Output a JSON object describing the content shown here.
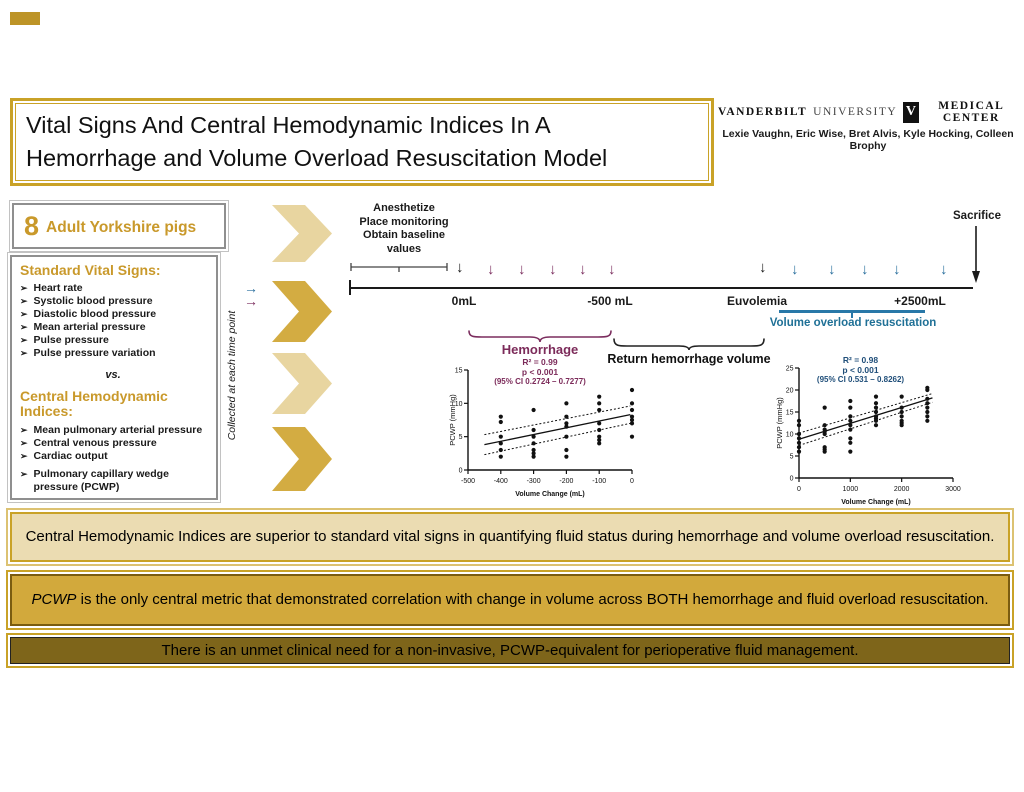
{
  "header": {
    "title_line1": "Vital Signs And Central Hemodynamic Indices In A",
    "title_line2": "Hemorrhage and Volume Overload Resuscitation Model",
    "org_part1": "VANDERBILT",
    "org_part2": "UNIVERSITY",
    "org_part3": "MEDICAL CENTER",
    "shield_letter": "V",
    "authors": "Lexie Vaughn, Eric Wise, Bret Alvis, Kyle Hocking, Colleen Brophy"
  },
  "left_panel": {
    "subjects_count": "8",
    "subjects_label": "Adult Yorkshire pigs",
    "vital_signs": {
      "heading": "Standard Vital Signs:",
      "items": [
        "Heart rate",
        "Systolic blood pressure",
        "Diastolic blood pressure",
        "Mean arterial pressure",
        "Pulse pressure",
        "Pulse pressure variation"
      ]
    },
    "versus": "vs.",
    "central_indices": {
      "heading": "Central Hemodynamic Indices:",
      "items": [
        "Mean pulmonary arterial pressure",
        "Central venous pressure",
        "Cardiac output",
        "Pulmonary capillary wedge pressure (PCWP)"
      ]
    },
    "collected_label": "Collected at each time point"
  },
  "timeline": {
    "baseline_lines": [
      "Anesthetize",
      "Place monitoring",
      "Obtain baseline",
      "values"
    ],
    "labels": {
      "start": "0mL",
      "hemorrhage_end": "-500 mL",
      "euvolemia": "Euvolemia",
      "overload_end": "+2500mL",
      "sacrifice": "Sacrifice"
    },
    "hemorrhage_label": "Hemorrhage",
    "return_label": "Return hemorrhage volume",
    "overload_label": "Volume overload resuscitation"
  },
  "chart_data": [
    {
      "type": "scatter",
      "title": "Hemorrhage",
      "stats": {
        "r2": "R² = 0.99",
        "p": "p < 0.001",
        "ci": "(95% CI 0.2724 – 0.7277)"
      },
      "xlabel": "Volume Change (mL)",
      "ylabel": "PCWP (mmHg)",
      "xlim": [
        -500,
        0
      ],
      "ylim": [
        0,
        15
      ],
      "xticks": [
        -500,
        -400,
        -300,
        -200,
        -100,
        0
      ],
      "yticks": [
        0,
        5,
        10,
        15
      ],
      "grid": false,
      "point_color": "#111111",
      "groups": [
        {
          "x": -400,
          "y": [
            2,
            3,
            4,
            5,
            7.2,
            8
          ]
        },
        {
          "x": -300,
          "y": [
            2,
            2.5,
            3,
            4,
            5,
            6,
            9
          ]
        },
        {
          "x": -200,
          "y": [
            2,
            3,
            5,
            6.5,
            7,
            8,
            10
          ]
        },
        {
          "x": -100,
          "y": [
            4,
            4.5,
            5,
            6,
            7,
            9,
            10,
            11
          ]
        },
        {
          "x": 0,
          "y": [
            5,
            7,
            7.5,
            8,
            9,
            10,
            12
          ]
        }
      ],
      "fit_line": {
        "x": [
          -450,
          -5
        ],
        "y": [
          3.8,
          8.3
        ]
      },
      "ci_upper": {
        "x": [
          -450,
          -5
        ],
        "y": [
          5.3,
          9.6
        ]
      },
      "ci_lower": {
        "x": [
          -450,
          -5
        ],
        "y": [
          2.3,
          7.0
        ]
      }
    },
    {
      "type": "scatter",
      "title": "Volume overload resuscitation",
      "stats": {
        "r2": "R² = 0.98",
        "p": "p < 0.001",
        "ci": "(95% CI 0.531 – 0.8262)"
      },
      "xlabel": "Volume Change (mL)",
      "ylabel": "PCWP (mmHg)",
      "xlim": [
        0,
        3000
      ],
      "ylim": [
        0,
        25
      ],
      "xticks": [
        0,
        1000,
        2000,
        3000
      ],
      "yticks": [
        0,
        5,
        10,
        15,
        20,
        25
      ],
      "grid": false,
      "point_color": "#111111",
      "groups": [
        {
          "x": 0,
          "y": [
            6,
            7,
            8,
            9,
            10,
            12,
            13
          ]
        },
        {
          "x": 500,
          "y": [
            6,
            6.5,
            7,
            10,
            10.5,
            11,
            12,
            16
          ]
        },
        {
          "x": 1000,
          "y": [
            6,
            8,
            9,
            11,
            12,
            13,
            14,
            16,
            17.5
          ]
        },
        {
          "x": 1500,
          "y": [
            12,
            13,
            13.5,
            14,
            15,
            16,
            17,
            18.5
          ]
        },
        {
          "x": 2000,
          "y": [
            12,
            12.5,
            13,
            14,
            15,
            16,
            18.5
          ]
        },
        {
          "x": 2500,
          "y": [
            13,
            14,
            15,
            16,
            17,
            18,
            20,
            20.5
          ]
        }
      ],
      "fit_line": {
        "x": [
          0,
          2600
        ],
        "y": [
          8.8,
          18.2
        ]
      },
      "ci_upper": {
        "x": [
          0,
          2600
        ],
        "y": [
          10.2,
          19.2
        ]
      },
      "ci_lower": {
        "x": [
          0,
          2600
        ],
        "y": [
          7.4,
          17.2
        ]
      }
    }
  ],
  "conclusions": [
    {
      "lead": "",
      "rest": "Central Hemodynamic Indices are superior to standard vital signs in quantifying fluid status during hemorrhage and volume overload resuscitation."
    },
    {
      "lead": "PCWP",
      "rest": " is the only central metric that demonstrated correlation with change in volume across BOTH hemorrhage and fluid overload resuscitation."
    },
    {
      "lead": "",
      "rest": "There is an unmet clinical need for a non-invasive, PCWP-equivalent for perioperative fluid management."
    }
  ],
  "colors": {
    "gold": "#C9A227",
    "gold_light_chevron": "#E8D5A0",
    "gold_dark_chevron": "#D3AC42",
    "purple": "#7B2D5E",
    "blue": "#2878A8",
    "navy_stats": "#1F4E79",
    "box1_bg": "#EBDCB2",
    "box2_bg": "#D2A93C",
    "box3_bg": "#7E651A"
  }
}
